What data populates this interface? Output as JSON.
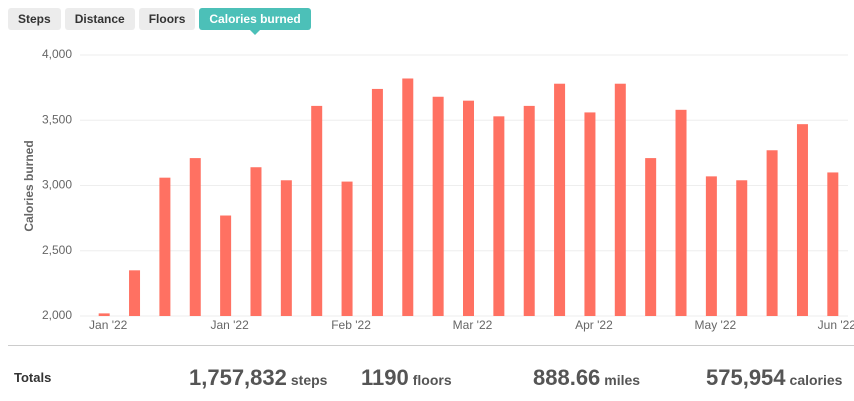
{
  "tabs": [
    "Steps",
    "Distance",
    "Floors",
    "Calories burned"
  ],
  "chart_data": {
    "type": "bar",
    "y_label": "Calories burned",
    "categories": [
      "Jan '22",
      null,
      null,
      null,
      "Jan '22",
      null,
      null,
      null,
      "Feb '22",
      null,
      null,
      null,
      "Mar '22",
      null,
      null,
      null,
      "Apr '22",
      null,
      null,
      null,
      "May '22",
      null,
      null,
      null,
      "Jun '22"
    ],
    "values": [
      2020,
      2350,
      3060,
      3210,
      2770,
      3140,
      3040,
      3610,
      3030,
      3740,
      3820,
      3680,
      3650,
      3530,
      3610,
      3780,
      3560,
      3780,
      3210,
      3580,
      3070,
      3040,
      3270,
      3470,
      3100
    ],
    "color": "#ff7162",
    "ylim": [
      2000,
      4000
    ],
    "yticks": [
      {
        "value": 2000,
        "label": "2,000"
      },
      {
        "value": 2500,
        "label": "2,500"
      },
      {
        "value": 3000,
        "label": "3,000"
      },
      {
        "value": 3500,
        "label": "3,500"
      },
      {
        "value": 4000,
        "label": "4,000"
      }
    ],
    "grid": true
  },
  "totals": {
    "label": "Totals",
    "items": [
      {
        "value": "1,757,832",
        "unit": "steps"
      },
      {
        "value": "1190",
        "unit": "floors"
      },
      {
        "value": "888.66",
        "unit": "miles"
      },
      {
        "value": "575,954",
        "unit": "calories"
      }
    ]
  }
}
